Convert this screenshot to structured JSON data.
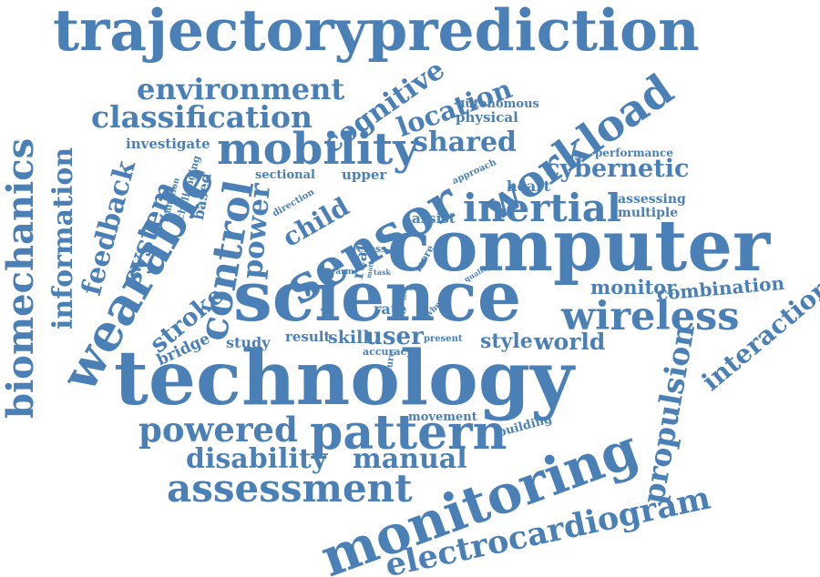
{
  "color": "#4a80b5",
  "words": {
    "trajectoryprediction": "trajectoryprediction",
    "environment": "environment",
    "classification": "classification",
    "cognitive": "cognitive",
    "location": "location",
    "autonomous": "autonomous",
    "physical": "physical",
    "workload": "workload",
    "mobility": "mobility",
    "shared": "shared",
    "investigate": "investigate",
    "biomechanics": "biomechanics",
    "information": "information",
    "feedback": "feedback",
    "wearable": "wearable",
    "system": "system",
    "challenging": "challenging",
    "limitation": "limitation",
    "based": "based",
    "control": "control",
    "power": "power",
    "sectional": "sectional",
    "direction": "direction",
    "child": "child",
    "upper": "upper",
    "sensor": "sensor",
    "approach": "approach",
    "performance": "performance",
    "cybernetic": "cybernetic",
    "heart": "heart",
    "assessing": "assessing",
    "multiple": "multiple",
    "inertial": "inertial",
    "assist": "assist",
    "computer": "computer",
    "cross": "cross",
    "real": "real",
    "more": "more",
    "forearm": "forearm",
    "motor": "motor",
    "task": "task",
    "quality": "quality",
    "science": "science",
    "device": "device",
    "data": "data",
    "food": "food",
    "wheel": "wheel",
    "monitor": "monitor",
    "combination": "combination",
    "interaction": "interaction",
    "wireless": "wireless",
    "rate": "rate",
    "stroke": "stroke",
    "bridge": "bridge",
    "study": "study",
    "result": "result",
    "skill": "skill",
    "user": "user",
    "present": "present",
    "style": "style",
    "world": "world",
    "accuracy": "accuracy",
    "measure": "measure",
    "technology": "technology",
    "propulsion": "propulsion",
    "movement": "movement",
    "building": "building",
    "powered": "powered",
    "pattern": "pattern",
    "disability": "disability",
    "manual": "manual",
    "assessment": "assessment",
    "monitoring": "monitoring",
    "electrocardiogram": "electrocardiogram"
  }
}
